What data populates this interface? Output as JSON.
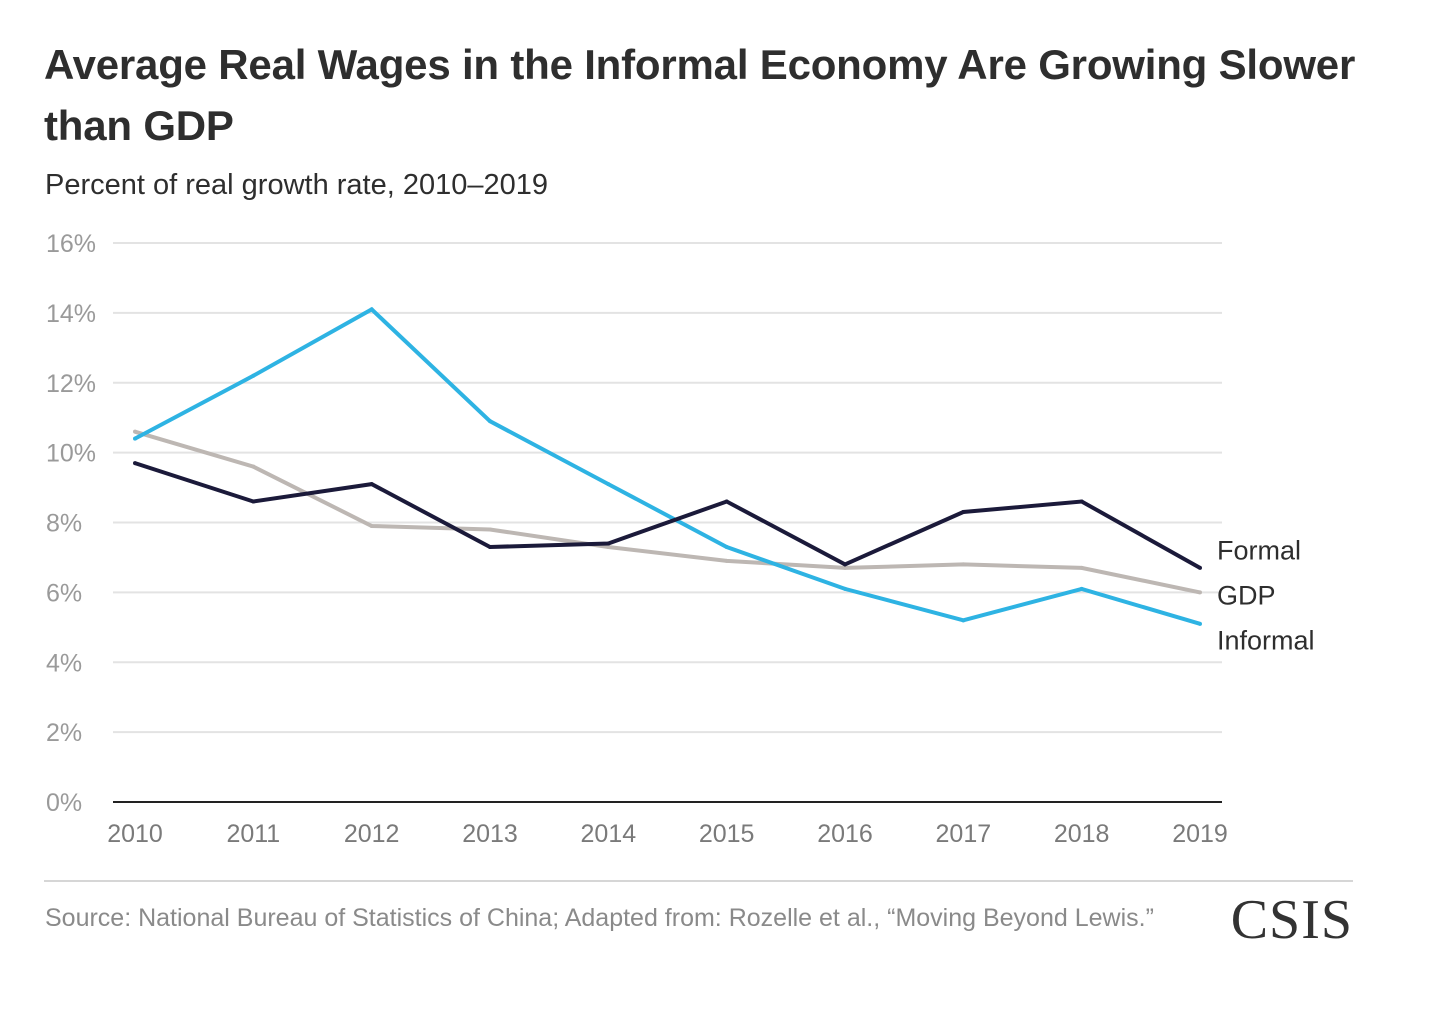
{
  "header": {
    "title": "Average Real Wages in the Informal Economy Are Growing Slower than GDP",
    "subtitle": "Percent of real growth rate, 2010–2019"
  },
  "footer": {
    "source": "Source: National Bureau of Statistics of China; Adapted from: Rozelle et al., “Moving Beyond Lewis.”",
    "logo_text": "CSIS"
  },
  "colors": {
    "formal": "#1b1a3a",
    "gdp": "#bdb7b3",
    "informal": "#2eb3e3",
    "grid": "#e3e3e3",
    "axis": "#222222",
    "tick_text": "#9a9a9a",
    "end_label": "#2e2e2e"
  },
  "chart_data": {
    "type": "line",
    "title": "Average Real Wages in the Informal Economy Are Growing Slower than GDP",
    "subtitle": "Percent of real growth rate, 2010–2019",
    "x": [
      "2010",
      "2011",
      "2012",
      "2013",
      "2014",
      "2015",
      "2016",
      "2017",
      "2018",
      "2019"
    ],
    "ylim": [
      0,
      16
    ],
    "yticks": [
      0,
      2,
      4,
      6,
      8,
      10,
      12,
      14,
      16
    ],
    "ytick_labels": [
      "0%",
      "2%",
      "4%",
      "6%",
      "8%",
      "10%",
      "12%",
      "14%",
      "16%"
    ],
    "grid": true,
    "legend": "direct labels at line ends",
    "series": [
      {
        "name": "GDP",
        "color_key": "gdp",
        "values": [
          10.6,
          9.6,
          7.9,
          7.8,
          7.3,
          6.9,
          6.7,
          6.8,
          6.7,
          6.0
        ]
      },
      {
        "name": "Informal",
        "color_key": "informal",
        "values": [
          10.4,
          12.2,
          14.1,
          10.9,
          9.1,
          7.3,
          6.1,
          5.2,
          6.1,
          5.1
        ]
      },
      {
        "name": "Formal",
        "color_key": "formal",
        "values": [
          9.7,
          8.6,
          9.1,
          7.3,
          7.4,
          8.6,
          6.8,
          8.3,
          8.6,
          6.7
        ]
      }
    ],
    "end_labels": [
      {
        "series": "Formal",
        "text": "Formal"
      },
      {
        "series": "GDP",
        "text": "GDP"
      },
      {
        "series": "Informal",
        "text": "Informal"
      }
    ]
  }
}
